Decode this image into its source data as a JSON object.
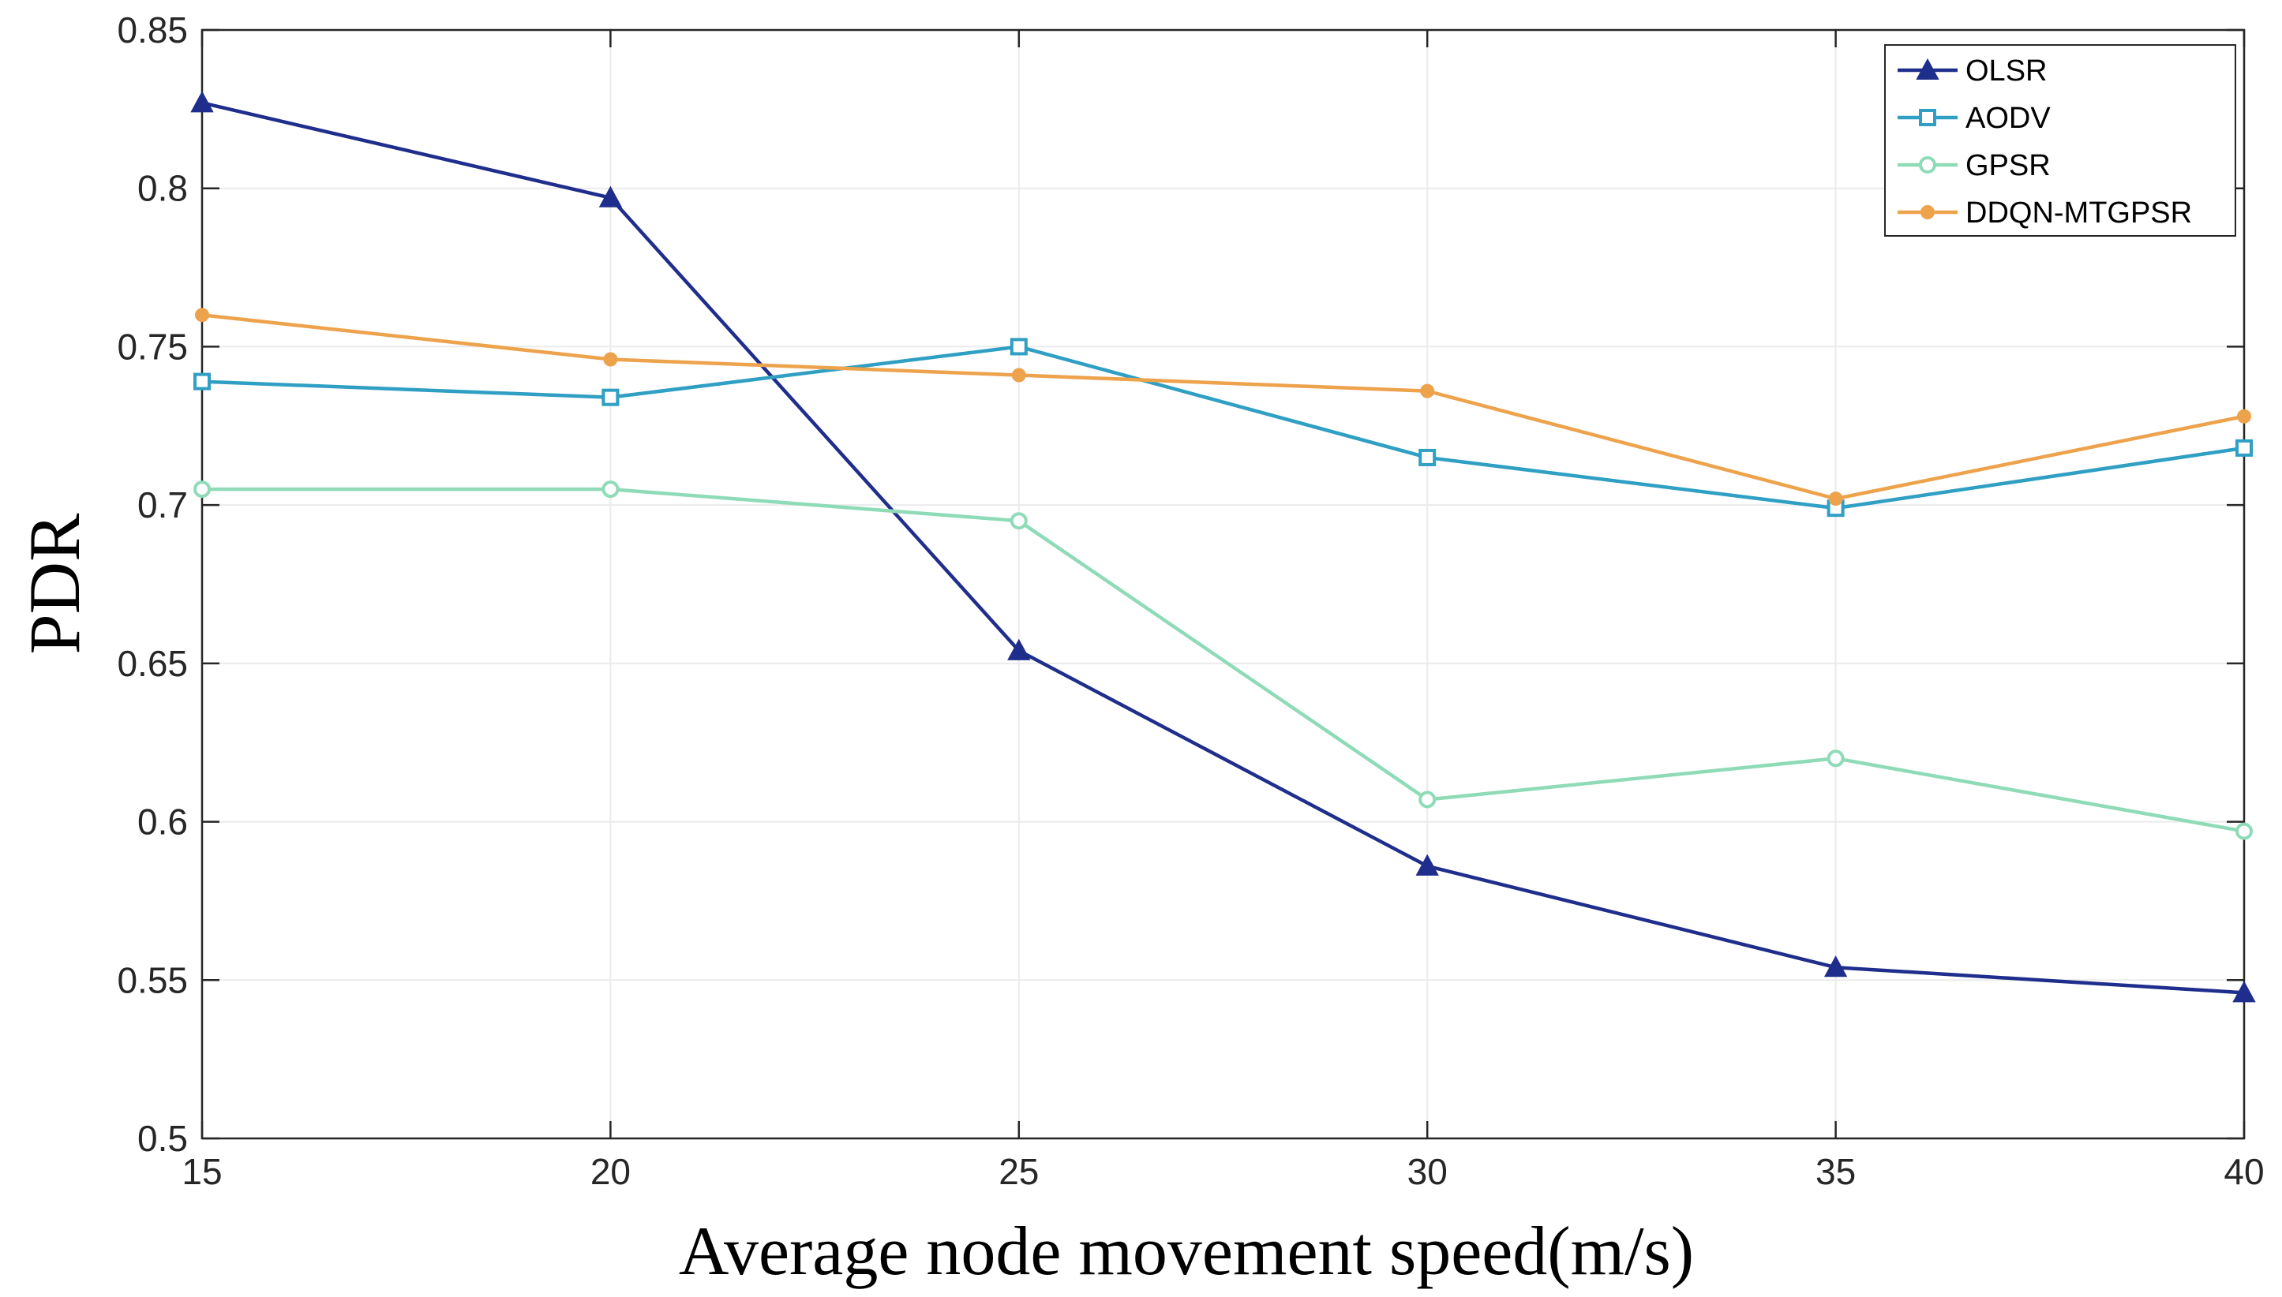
{
  "chart_data": {
    "type": "line",
    "title": "",
    "xlabel": "Average node movement speed(m/s)",
    "ylabel": "PDR",
    "x": [
      15,
      20,
      25,
      30,
      35,
      40
    ],
    "xlim": [
      15,
      40
    ],
    "ylim": [
      0.5,
      0.85
    ],
    "xticks": [
      "15",
      "20",
      "25",
      "30",
      "35",
      "40"
    ],
    "yticks": [
      "0.5",
      "0.55",
      "0.6",
      "0.65",
      "0.7",
      "0.75",
      "0.8",
      "0.85"
    ],
    "grid": true,
    "legend_position": "top-right",
    "series": [
      {
        "name": "OLSR",
        "color": "#1f2e8c",
        "marker": "triangle",
        "values": [
          0.827,
          0.797,
          0.654,
          0.586,
          0.554,
          0.546
        ]
      },
      {
        "name": "AODV",
        "color": "#2f9fc4",
        "marker": "square",
        "values": [
          0.739,
          0.734,
          0.75,
          0.715,
          0.699,
          0.718
        ]
      },
      {
        "name": "GPSR",
        "color": "#8fdbb8",
        "marker": "circle",
        "values": [
          0.705,
          0.705,
          0.695,
          0.607,
          0.62,
          0.597
        ]
      },
      {
        "name": "DDQN-MTGPSR",
        "color": "#eda24c",
        "marker": "dot",
        "values": [
          0.76,
          0.746,
          0.741,
          0.736,
          0.702,
          0.728
        ]
      }
    ]
  }
}
